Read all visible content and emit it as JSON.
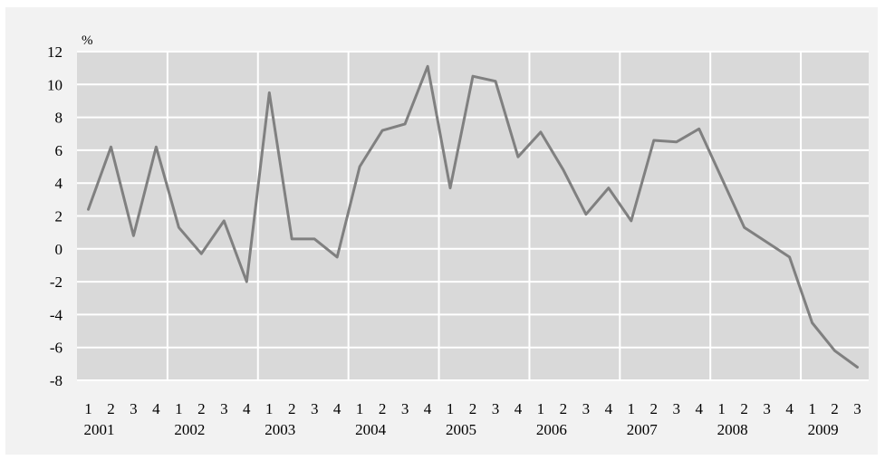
{
  "chart_data": {
    "type": "line",
    "unit_label": "%",
    "ylim": [
      -8,
      12
    ],
    "y_ticks": [
      "12",
      "10",
      "8",
      "6",
      "4",
      "2",
      "0",
      "-2",
      "-4",
      "-6",
      "-8"
    ],
    "grid": true,
    "quarters": [
      "1",
      "2",
      "3",
      "4",
      "1",
      "2",
      "3",
      "4",
      "1",
      "2",
      "3",
      "4",
      "1",
      "2",
      "3",
      "4",
      "1",
      "2",
      "3",
      "4",
      "1",
      "2",
      "3",
      "4",
      "1",
      "2",
      "3",
      "4",
      "1",
      "2",
      "3",
      "4",
      "1",
      "2",
      "3"
    ],
    "years": [
      "2001",
      "2002",
      "2003",
      "2004",
      "2005",
      "2006",
      "2007",
      "2008",
      "2009"
    ],
    "series": [
      {
        "color": "#808080",
        "values": [
          2.4,
          6.2,
          0.8,
          6.2,
          1.3,
          -0.3,
          1.7,
          -2.0,
          9.5,
          0.6,
          0.6,
          -0.5,
          5.0,
          7.2,
          7.6,
          11.1,
          3.7,
          10.5,
          10.2,
          5.6,
          7.1,
          4.8,
          2.1,
          3.7,
          1.7,
          6.6,
          6.5,
          7.3,
          4.3,
          1.3,
          0.4,
          -0.5,
          -4.5,
          -6.2,
          -7.2
        ]
      }
    ]
  }
}
